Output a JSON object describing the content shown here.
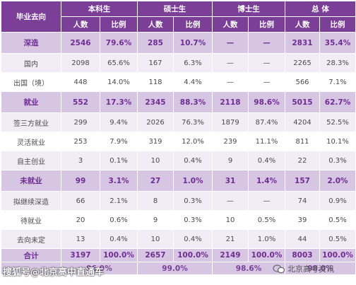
{
  "header": {
    "corner": "毕业去向",
    "groups": [
      "本科生",
      "硕士生",
      "博士生",
      "总 体"
    ],
    "sub": [
      "人数",
      "比例"
    ]
  },
  "rows": [
    {
      "label": "深造",
      "type": "cat",
      "cells": [
        "2546",
        "79.6%",
        "285",
        "10.7%",
        "—",
        "—",
        "2831",
        "35.4%"
      ]
    },
    {
      "label": "国内",
      "type": "sub",
      "cells": [
        "2098",
        "65.6%",
        "167",
        "6.3%",
        "—",
        "—",
        "2265",
        "28.3%"
      ]
    },
    {
      "label": "出国（境）",
      "type": "sub",
      "cells": [
        "448",
        "14.0%",
        "118",
        "4.4%",
        "—",
        "—",
        "566",
        "7.1%"
      ]
    },
    {
      "label": "就业",
      "type": "cat",
      "cells": [
        "552",
        "17.3%",
        "2345",
        "88.3%",
        "2118",
        "98.6%",
        "5015",
        "62.7%"
      ]
    },
    {
      "label": "签三方就业",
      "type": "sub",
      "cells": [
        "299",
        "9.4%",
        "2026",
        "76.3%",
        "1879",
        "87.4%",
        "4204",
        "52.5%"
      ]
    },
    {
      "label": "灵活就业",
      "type": "sub",
      "cells": [
        "253",
        "7.9%",
        "319",
        "12.0%",
        "239",
        "11.1%",
        "811",
        "10.1%"
      ]
    },
    {
      "label": "自主创业",
      "type": "sub",
      "cells": [
        "3",
        "0.1%",
        "10",
        "0.4%",
        "9",
        "0.4%",
        "22",
        "0.3%"
      ]
    },
    {
      "label": "未就业",
      "type": "cat",
      "cells": [
        "99",
        "3.1%",
        "27",
        "1.0%",
        "31",
        "1.4%",
        "157",
        "2.0%"
      ]
    },
    {
      "label": "拟继续深造",
      "type": "sub",
      "cells": [
        "66",
        "2.1%",
        "8",
        "0.3%",
        "—",
        "—",
        "74",
        "0.9%"
      ]
    },
    {
      "label": "待就业",
      "type": "sub",
      "cells": [
        "20",
        "0.6%",
        "9",
        "0.3%",
        "10",
        "0.5%",
        "39",
        "0.5%"
      ]
    },
    {
      "label": "去向未定",
      "type": "sub",
      "cells": [
        "13",
        "0.4%",
        "10",
        "0.4%",
        "21",
        "1.0%",
        "44",
        "0.5%"
      ]
    },
    {
      "label": "合计",
      "type": "total",
      "cells": [
        "3197",
        "100.0%",
        "2657",
        "100.0%",
        "2149",
        "100.0%",
        "8003",
        "100.0%"
      ]
    }
  ],
  "rate_row": [
    "96.9%",
    "99.0%",
    "98.6%",
    "98.0%"
  ],
  "watermarks": {
    "left": "搜狐号@北京高中直通车",
    "right": "北京高考资讯"
  },
  "colors": {
    "header_bg": "#7b3f98",
    "category_bg": "#d7c6e3",
    "category_text": "#6f2d92",
    "stripe_bg": "#f2ecf6"
  }
}
